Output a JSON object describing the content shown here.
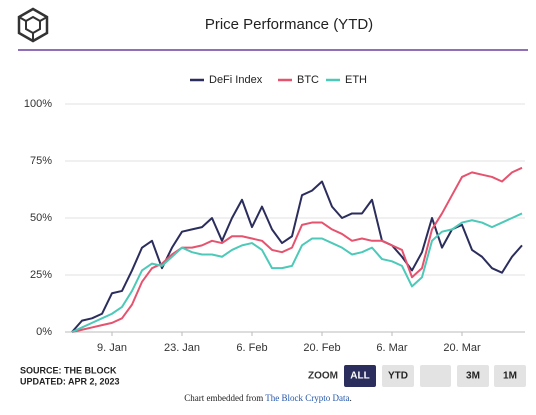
{
  "chart_data": {
    "type": "line",
    "title": "Price Performance (YTD)",
    "x": [
      "1. Jan",
      "3. Jan",
      "5. Jan",
      "7. Jan",
      "9. Jan",
      "11. Jan",
      "13. Jan",
      "15. Jan",
      "17. Jan",
      "19. Jan",
      "21. Jan",
      "23. Jan",
      "25. Jan",
      "27. Jan",
      "29. Jan",
      "31. Jan",
      "2. Feb",
      "4. Feb",
      "6. Feb",
      "8. Feb",
      "10. Feb",
      "12. Feb",
      "14. Feb",
      "16. Feb",
      "18. Feb",
      "20. Feb",
      "22. Feb",
      "24. Feb",
      "26. Feb",
      "28. Feb",
      "2. Mar",
      "4. Mar",
      "6. Mar",
      "8. Mar",
      "10. Mar",
      "12. Mar",
      "14. Mar",
      "16. Mar",
      "18. Mar",
      "20. Mar",
      "22. Mar",
      "24. Mar",
      "26. Mar",
      "28. Mar",
      "30. Mar",
      "1. Apr"
    ],
    "xticks": [
      "9. Jan",
      "23. Jan",
      "6. Feb",
      "20. Feb",
      "6. Mar",
      "20. Mar"
    ],
    "series": [
      {
        "name": "DeFi Index",
        "color": "#2b2d5c",
        "values": [
          0,
          5,
          6,
          8,
          17,
          18,
          27,
          37,
          40,
          28,
          37,
          44,
          45,
          46,
          50,
          40,
          50,
          58,
          46,
          55,
          45,
          39,
          42,
          60,
          62,
          66,
          55,
          50,
          52,
          52,
          58,
          40,
          38,
          33,
          27,
          35,
          50,
          37,
          45,
          47,
          36,
          33,
          28,
          26,
          33,
          38
        ]
      },
      {
        "name": "BTC",
        "color": "#e5536e",
        "values": [
          0,
          1,
          2,
          3,
          4,
          6,
          12,
          22,
          28,
          30,
          34,
          37,
          37,
          38,
          40,
          39,
          42,
          42,
          41,
          40,
          36,
          35,
          37,
          47,
          48,
          48,
          45,
          43,
          40,
          41,
          40,
          40,
          38,
          36,
          24,
          28,
          45,
          52,
          60,
          68,
          70,
          69,
          68,
          66,
          70,
          72
        ]
      },
      {
        "name": "ETH",
        "color": "#4cc9b8",
        "values": [
          0,
          2,
          4,
          6,
          8,
          11,
          18,
          27,
          30,
          29,
          33,
          37,
          35,
          34,
          34,
          33,
          36,
          38,
          39,
          36,
          28,
          28,
          29,
          38,
          41,
          41,
          39,
          37,
          34,
          35,
          37,
          32,
          31,
          29,
          20,
          24,
          40,
          44,
          45,
          48,
          49,
          48,
          46,
          48,
          50,
          52
        ]
      }
    ],
    "ylim": [
      0,
      100
    ],
    "yticks": [
      {
        "value": 0,
        "label": "0%"
      },
      {
        "value": 25,
        "label": "25%"
      },
      {
        "value": 50,
        "label": "50%"
      },
      {
        "value": 75,
        "label": "75%"
      },
      {
        "value": 100,
        "label": "100%"
      }
    ],
    "grid": true
  },
  "source": "SOURCE: THE BLOCK",
  "updated": "UPDATED: APR 2, 2023",
  "zoom": {
    "label": "ZOOM",
    "buttons": [
      "ALL",
      "YTD",
      "3M",
      "1M"
    ]
  },
  "footer": {
    "text": "Chart embedded from ",
    "link": "The Block Crypto Data",
    "suffix": "."
  }
}
